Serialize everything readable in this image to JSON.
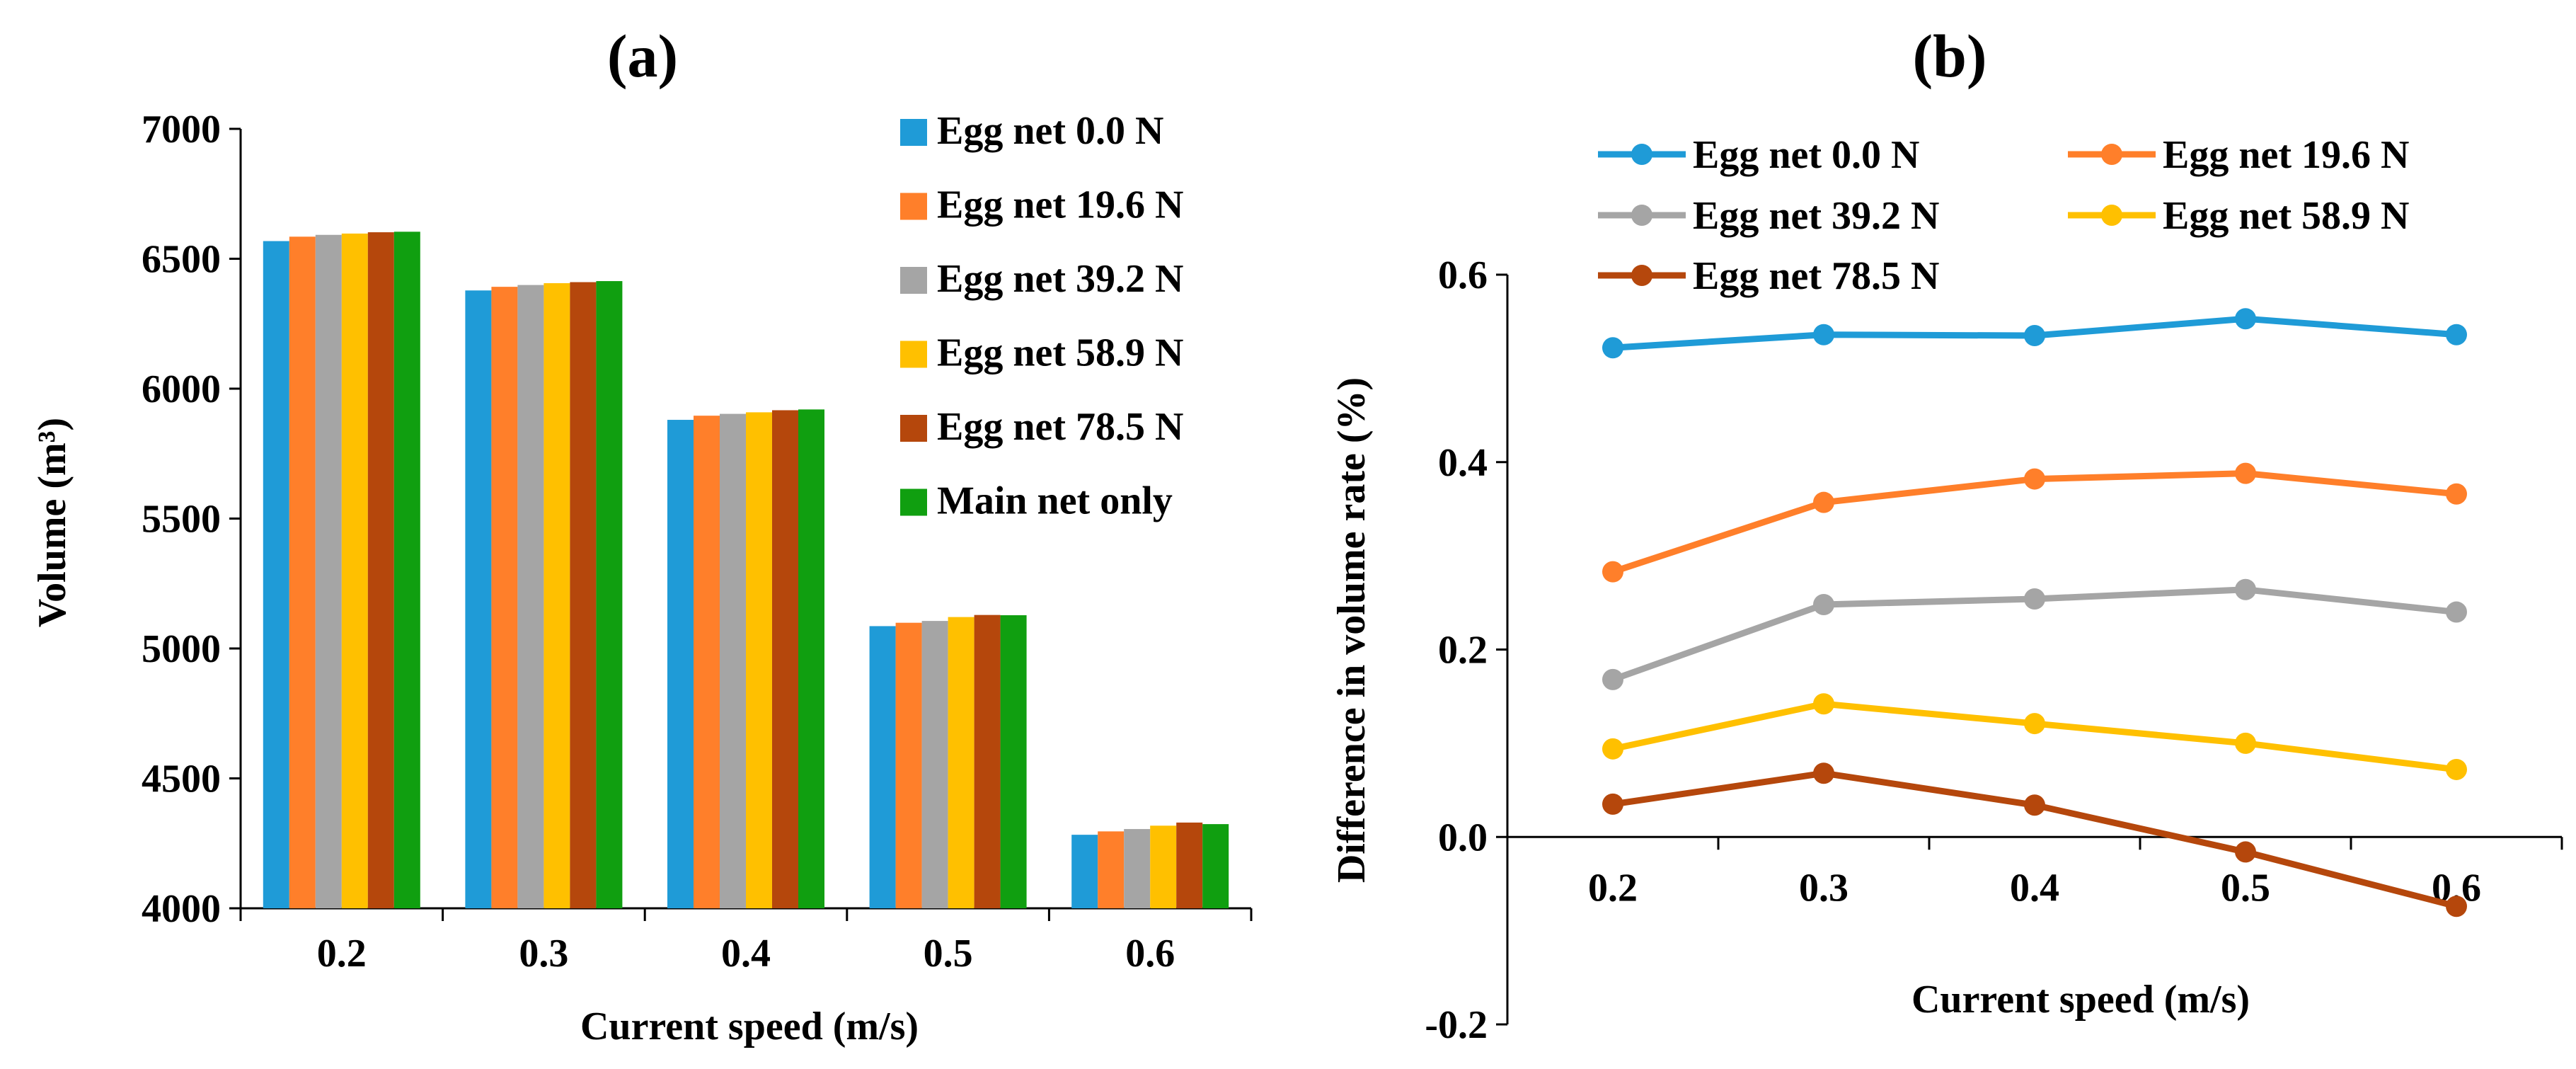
{
  "chart_data": [
    {
      "type": "bar",
      "panel_label": "(a)",
      "title": "",
      "xlabel": "Current speed (m/s)",
      "ylabel": "Volume (m³)",
      "ylim": [
        4000,
        7000
      ],
      "yticks": [
        "4000",
        "4500",
        "5000",
        "5500",
        "6000",
        "6500",
        "7000"
      ],
      "categories": [
        "0.2",
        "0.3",
        "0.4",
        "0.5",
        "0.6"
      ],
      "legend_position": "right",
      "series": [
        {
          "name": "Egg net 0.0 N",
          "color": "#1f9bd7",
          "values": [
            6568,
            6378,
            5880,
            5086,
            4283
          ]
        },
        {
          "name": "Egg net 19.6 N",
          "color": "#ff7f2a",
          "values": [
            6585,
            6392,
            5896,
            5099,
            4296
          ]
        },
        {
          "name": "Egg net 39.2 N",
          "color": "#a5a5a5",
          "values": [
            6592,
            6399,
            5903,
            5106,
            4305
          ]
        },
        {
          "name": "Egg net 58.9 N",
          "color": "#ffc000",
          "values": [
            6597,
            6406,
            5909,
            5121,
            4318
          ]
        },
        {
          "name": "Egg net 78.5 N",
          "color": "#b5470c",
          "values": [
            6602,
            6410,
            5917,
            5129,
            4330
          ]
        },
        {
          "name": "Main net only",
          "color": "#109f10",
          "values": [
            6604,
            6414,
            5920,
            5128,
            4324
          ]
        }
      ]
    },
    {
      "type": "line",
      "panel_label": "(b)",
      "title": "",
      "xlabel": "Current speed (m/s)",
      "ylabel": "Difference in volume rate (%)",
      "ylim": [
        -0.2,
        0.6
      ],
      "yticks": [
        "-0.2",
        "0.0",
        "0.2",
        "0.4",
        "0.6"
      ],
      "x": [
        "0.2",
        "0.3",
        "0.4",
        "0.5",
        "0.6"
      ],
      "legend_position": "top",
      "series": [
        {
          "name": "Egg net 0.0 N",
          "color": "#1f9bd7",
          "values": [
            0.522,
            0.536,
            0.535,
            0.553,
            0.536
          ]
        },
        {
          "name": "Egg net 19.6 N",
          "color": "#ff7f2a",
          "values": [
            0.283,
            0.357,
            0.382,
            0.388,
            0.366
          ]
        },
        {
          "name": "Egg net 39.2 N",
          "color": "#a5a5a5",
          "values": [
            0.168,
            0.248,
            0.254,
            0.264,
            0.24
          ]
        },
        {
          "name": "Egg net 58.9 N",
          "color": "#ffc000",
          "values": [
            0.094,
            0.142,
            0.121,
            0.1,
            0.072
          ]
        },
        {
          "name": "Egg net 78.5 N",
          "color": "#b5470c",
          "values": [
            0.035,
            0.068,
            0.034,
            -0.016,
            -0.074
          ]
        }
      ]
    }
  ]
}
